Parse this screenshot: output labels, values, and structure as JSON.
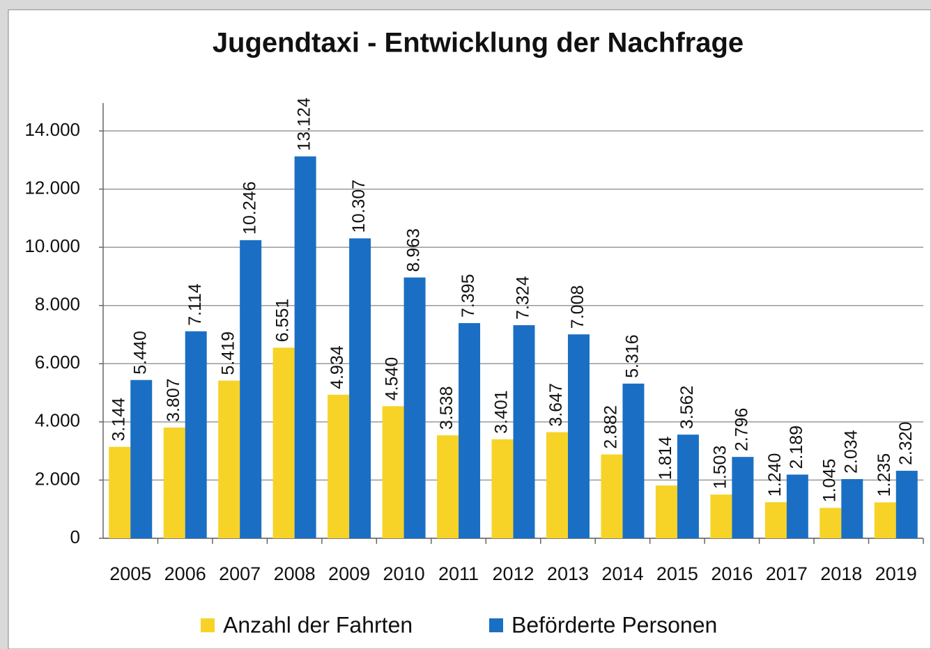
{
  "chart_data": {
    "type": "bar",
    "title": "Jugendtaxi - Entwicklung der Nachfrage",
    "categories": [
      "2005",
      "2006",
      "2007",
      "2008",
      "2009",
      "2010",
      "2011",
      "2012",
      "2013",
      "2014",
      "2015",
      "2016",
      "2017",
      "2018",
      "2019"
    ],
    "series": [
      {
        "name": "Anzahl der Fahrten",
        "color": "#f7d328",
        "values": [
          3144,
          3807,
          5419,
          6551,
          4934,
          4540,
          3538,
          3401,
          3647,
          2882,
          1814,
          1503,
          1240,
          1045,
          1235
        ],
        "value_labels": [
          "3.144",
          "3.807",
          "5.419",
          "6.551",
          "4.934",
          "4.540",
          "3.538",
          "3.401",
          "3.647",
          "2.882",
          "1.814",
          "1.503",
          "1.240",
          "1.045",
          "1.235"
        ]
      },
      {
        "name": "Beförderte Personen",
        "color": "#1a6fc4",
        "values": [
          5440,
          7114,
          10246,
          13124,
          10307,
          8963,
          7395,
          7324,
          7008,
          5316,
          3562,
          2796,
          2189,
          2034,
          2320
        ],
        "value_labels": [
          "5.440",
          "7.114",
          "10.246",
          "13.124",
          "10.307",
          "8.963",
          "7.395",
          "7.324",
          "7.008",
          "5.316",
          "3.562",
          "2.796",
          "2.189",
          "2.034",
          "2.320"
        ]
      }
    ],
    "ylim": [
      0,
      14000
    ],
    "yticks": [
      0,
      {
        "value": 2000,
        "label": "2.000"
      },
      {
        "value": 4000,
        "label": "4.000"
      },
      {
        "value": 6000,
        "label": "6.000"
      },
      {
        "value": 8000,
        "label": "8.000"
      },
      {
        "value": 10000,
        "label": "10.000"
      },
      {
        "value": 12000,
        "label": "12.000"
      },
      {
        "value": 14000,
        "label": "14.000"
      }
    ],
    "grid": true,
    "legend": "bottom"
  }
}
